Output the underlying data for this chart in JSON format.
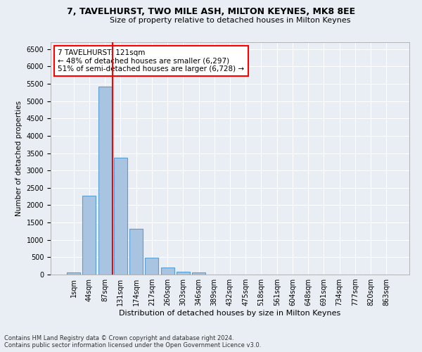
{
  "title1": "7, TAVELHURST, TWO MILE ASH, MILTON KEYNES, MK8 8EE",
  "title2": "Size of property relative to detached houses in Milton Keynes",
  "xlabel": "Distribution of detached houses by size in Milton Keynes",
  "ylabel": "Number of detached properties",
  "footnote1": "Contains HM Land Registry data © Crown copyright and database right 2024.",
  "footnote2": "Contains public sector information licensed under the Open Government Licence v3.0.",
  "bar_labels": [
    "1sqm",
    "44sqm",
    "87sqm",
    "131sqm",
    "174sqm",
    "217sqm",
    "260sqm",
    "303sqm",
    "346sqm",
    "389sqm",
    "432sqm",
    "475sqm",
    "518sqm",
    "561sqm",
    "604sqm",
    "648sqm",
    "691sqm",
    "734sqm",
    "777sqm",
    "820sqm",
    "863sqm"
  ],
  "bar_values": [
    70,
    2270,
    5430,
    3380,
    1310,
    480,
    200,
    90,
    55,
    0,
    0,
    0,
    0,
    0,
    0,
    0,
    0,
    0,
    0,
    0,
    0
  ],
  "bar_color": "#a8c4e0",
  "bar_edge_color": "#5a9fd4",
  "annotation_line1": "7 TAVELHURST: 121sqm",
  "annotation_line2": "← 48% of detached houses are smaller (6,297)",
  "annotation_line3": "51% of semi-detached houses are larger (6,728) →",
  "red_line_bin_index": 2,
  "ylim": [
    0,
    6700
  ],
  "ytick_interval": 500,
  "background_color": "#e8eef4",
  "grid_color": "#ffffff",
  "bar_edge_linewidth": 0.8,
  "title1_fontsize": 9,
  "title2_fontsize": 8,
  "xlabel_fontsize": 8,
  "ylabel_fontsize": 7.5,
  "tick_fontsize": 7,
  "annotation_fontsize": 7.5,
  "footnote_fontsize": 6
}
